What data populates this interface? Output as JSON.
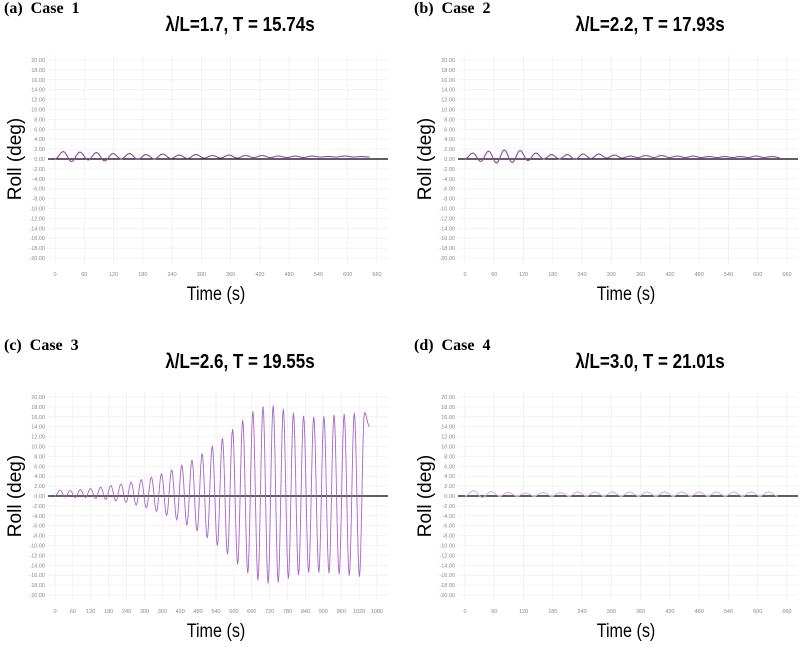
{
  "chart_data": [
    {
      "type": "line",
      "panel_label": "(a)  Case  1",
      "title": "λ/L=1.7, T = 15.74s",
      "xlabel": "Time (s)",
      "ylabel": "Roll (deg)",
      "xlim": [
        0,
        660
      ],
      "xticks": [
        0,
        60,
        120,
        180,
        240,
        300,
        360,
        420,
        480,
        540,
        600,
        660
      ],
      "ylim": [
        -20,
        20
      ],
      "yticks": [
        "20.00",
        "18.00",
        "16.00",
        "14.00",
        "12.00",
        "10.00",
        "8.00",
        "6.00",
        "4.00",
        "2.00",
        "0.00",
        "-2.00",
        "-4.00",
        "-6.00",
        "-8.00",
        "-10.00",
        "-12.00",
        "-14.00",
        "-16.00",
        "-18.00",
        "-20.00"
      ],
      "grid": true,
      "line_color": "#8e44ad",
      "x_end": 645,
      "y_end": 0.4,
      "maxima": [
        1.5,
        1.4,
        1.3,
        1.1,
        1.1,
        0.9,
        1.0,
        0.8,
        0.9,
        0.7,
        0.8,
        0.7,
        0.7,
        0.6,
        0.6,
        0.6,
        0.5,
        0.6,
        0.5
      ],
      "minima": [
        -0.5,
        -0.2,
        -0.4,
        0,
        -0.1,
        0,
        0.1,
        0.1,
        0.2,
        0.2,
        0.2,
        0.3,
        0.3,
        0.3,
        0.3,
        0.4,
        0.4,
        0.4
      ]
    },
    {
      "type": "line",
      "panel_label": "(b)  Case  2",
      "title": "λ/L=2.2, T = 17.93s",
      "xlabel": "Time (s)",
      "ylabel": "Roll (deg)",
      "xlim": [
        0,
        660
      ],
      "xticks": [
        0,
        60,
        120,
        180,
        240,
        300,
        360,
        420,
        480,
        540,
        600,
        660
      ],
      "ylim": [
        -20,
        20
      ],
      "yticks": [
        "20.00",
        "18.00",
        "16.00",
        "14.00",
        "12.00",
        "10.00",
        "8.00",
        "6.00",
        "4.00",
        "2.00",
        "0.00",
        "-2.00",
        "-4.00",
        "-6.00",
        "-8.00",
        "-10.00",
        "-12.00",
        "-14.00",
        "-16.00",
        "-18.00",
        "-20.00"
      ],
      "grid": true,
      "line_color": "#8e44ad",
      "x_end": 645,
      "y_end": 0.3,
      "maxima": [
        1.2,
        1.6,
        1.8,
        1.7,
        1.2,
        0.9,
        0.9,
        1.0,
        1.0,
        0.8,
        0.6,
        0.7,
        0.7,
        0.6,
        0.6,
        0.5,
        0.5,
        0.5,
        0.6,
        0.5
      ],
      "minima": [
        -0.5,
        -0.8,
        -0.7,
        -0.3,
        0,
        0,
        -0.1,
        0.1,
        0.2,
        0.2,
        0.3,
        0.3,
        0.3,
        0.3,
        0.3,
        0.3,
        0.3,
        0.3,
        0.3
      ]
    },
    {
      "type": "line",
      "panel_label": "(c)  Case  3",
      "title": "λ/L=2.6, T = 19.55s",
      "xlabel": "Time (s)",
      "ylabel": "Roll (deg)",
      "xlim": [
        0,
        1080
      ],
      "xticks": [
        0,
        60,
        120,
        180,
        240,
        300,
        360,
        420,
        480,
        540,
        600,
        660,
        720,
        780,
        840,
        900,
        960,
        1020,
        1080
      ],
      "ylim": [
        -20,
        20
      ],
      "yticks": [
        "20.00",
        "18.00",
        "16.00",
        "14.00",
        "12.00",
        "10.00",
        "8.00",
        "6.00",
        "4.00",
        "2.00",
        "0.00",
        "-2.00",
        "-4.00",
        "-6.00",
        "-8.00",
        "-10.00",
        "-12.00",
        "-14.00",
        "-16.00",
        "-18.00",
        "-20.00"
      ],
      "grid": true,
      "line_color": "#a865c9",
      "x_end": 1055,
      "y_end": 14,
      "maxima": [
        1.2,
        1.1,
        1.3,
        1.5,
        1.8,
        2.1,
        2.4,
        2.8,
        3.3,
        3.8,
        4.5,
        5.3,
        6.2,
        7.3,
        8.6,
        10.1,
        11.7,
        13.5,
        15.4,
        17.1,
        18.1,
        18.3,
        17.6,
        16.8,
        16.2,
        16.0,
        16.1,
        16.4,
        16.6,
        16.8,
        16.9
      ],
      "minima": [
        -0.2,
        -0.3,
        -0.3,
        -0.5,
        -0.7,
        -1.0,
        -1.3,
        -1.8,
        -2.4,
        -3.1,
        -3.9,
        -4.8,
        -5.9,
        -7.1,
        -8.5,
        -10.0,
        -11.8,
        -13.8,
        -15.6,
        -17.0,
        -17.7,
        -17.5,
        -16.7,
        -16.0,
        -15.5,
        -15.5,
        -15.6,
        -15.8,
        -16.1,
        -16.3
      ]
    },
    {
      "type": "line",
      "panel_label": "(d)  Case  4",
      "title": "λ/L=3.0, T = 21.01s",
      "xlabel": "Time (s)",
      "ylabel": "Roll (deg)",
      "xlim": [
        0,
        660
      ],
      "xticks": [
        0,
        60,
        120,
        180,
        240,
        300,
        360,
        420,
        480,
        540,
        600,
        660
      ],
      "ylim": [
        -20,
        20
      ],
      "yticks": [
        "20.00",
        "18.00",
        "16.00",
        "14.00",
        "12.00",
        "10.00",
        "8.00",
        "6.00",
        "4.00",
        "2.00",
        "0.00",
        "-2.00",
        "-4.00",
        "-6.00",
        "-8.00",
        "-10.00",
        "-12.00",
        "-14.00",
        "-16.00",
        "-18.00",
        "-20.00"
      ],
      "grid": true,
      "line_color": "#d2b4e2",
      "x_end": 640,
      "y_end": 0,
      "maxima": [
        1.1,
        0.9,
        0.7,
        0.6,
        0.7,
        0.7,
        0.8,
        0.8,
        0.8,
        0.8,
        0.8,
        0.8,
        0.8,
        0.8,
        0.8,
        0.8,
        0.8,
        0.8
      ],
      "minima": [
        -0.3,
        0,
        0,
        0,
        0,
        0,
        0,
        0,
        0,
        0,
        0,
        0,
        0,
        0,
        0,
        0,
        0
      ]
    }
  ]
}
